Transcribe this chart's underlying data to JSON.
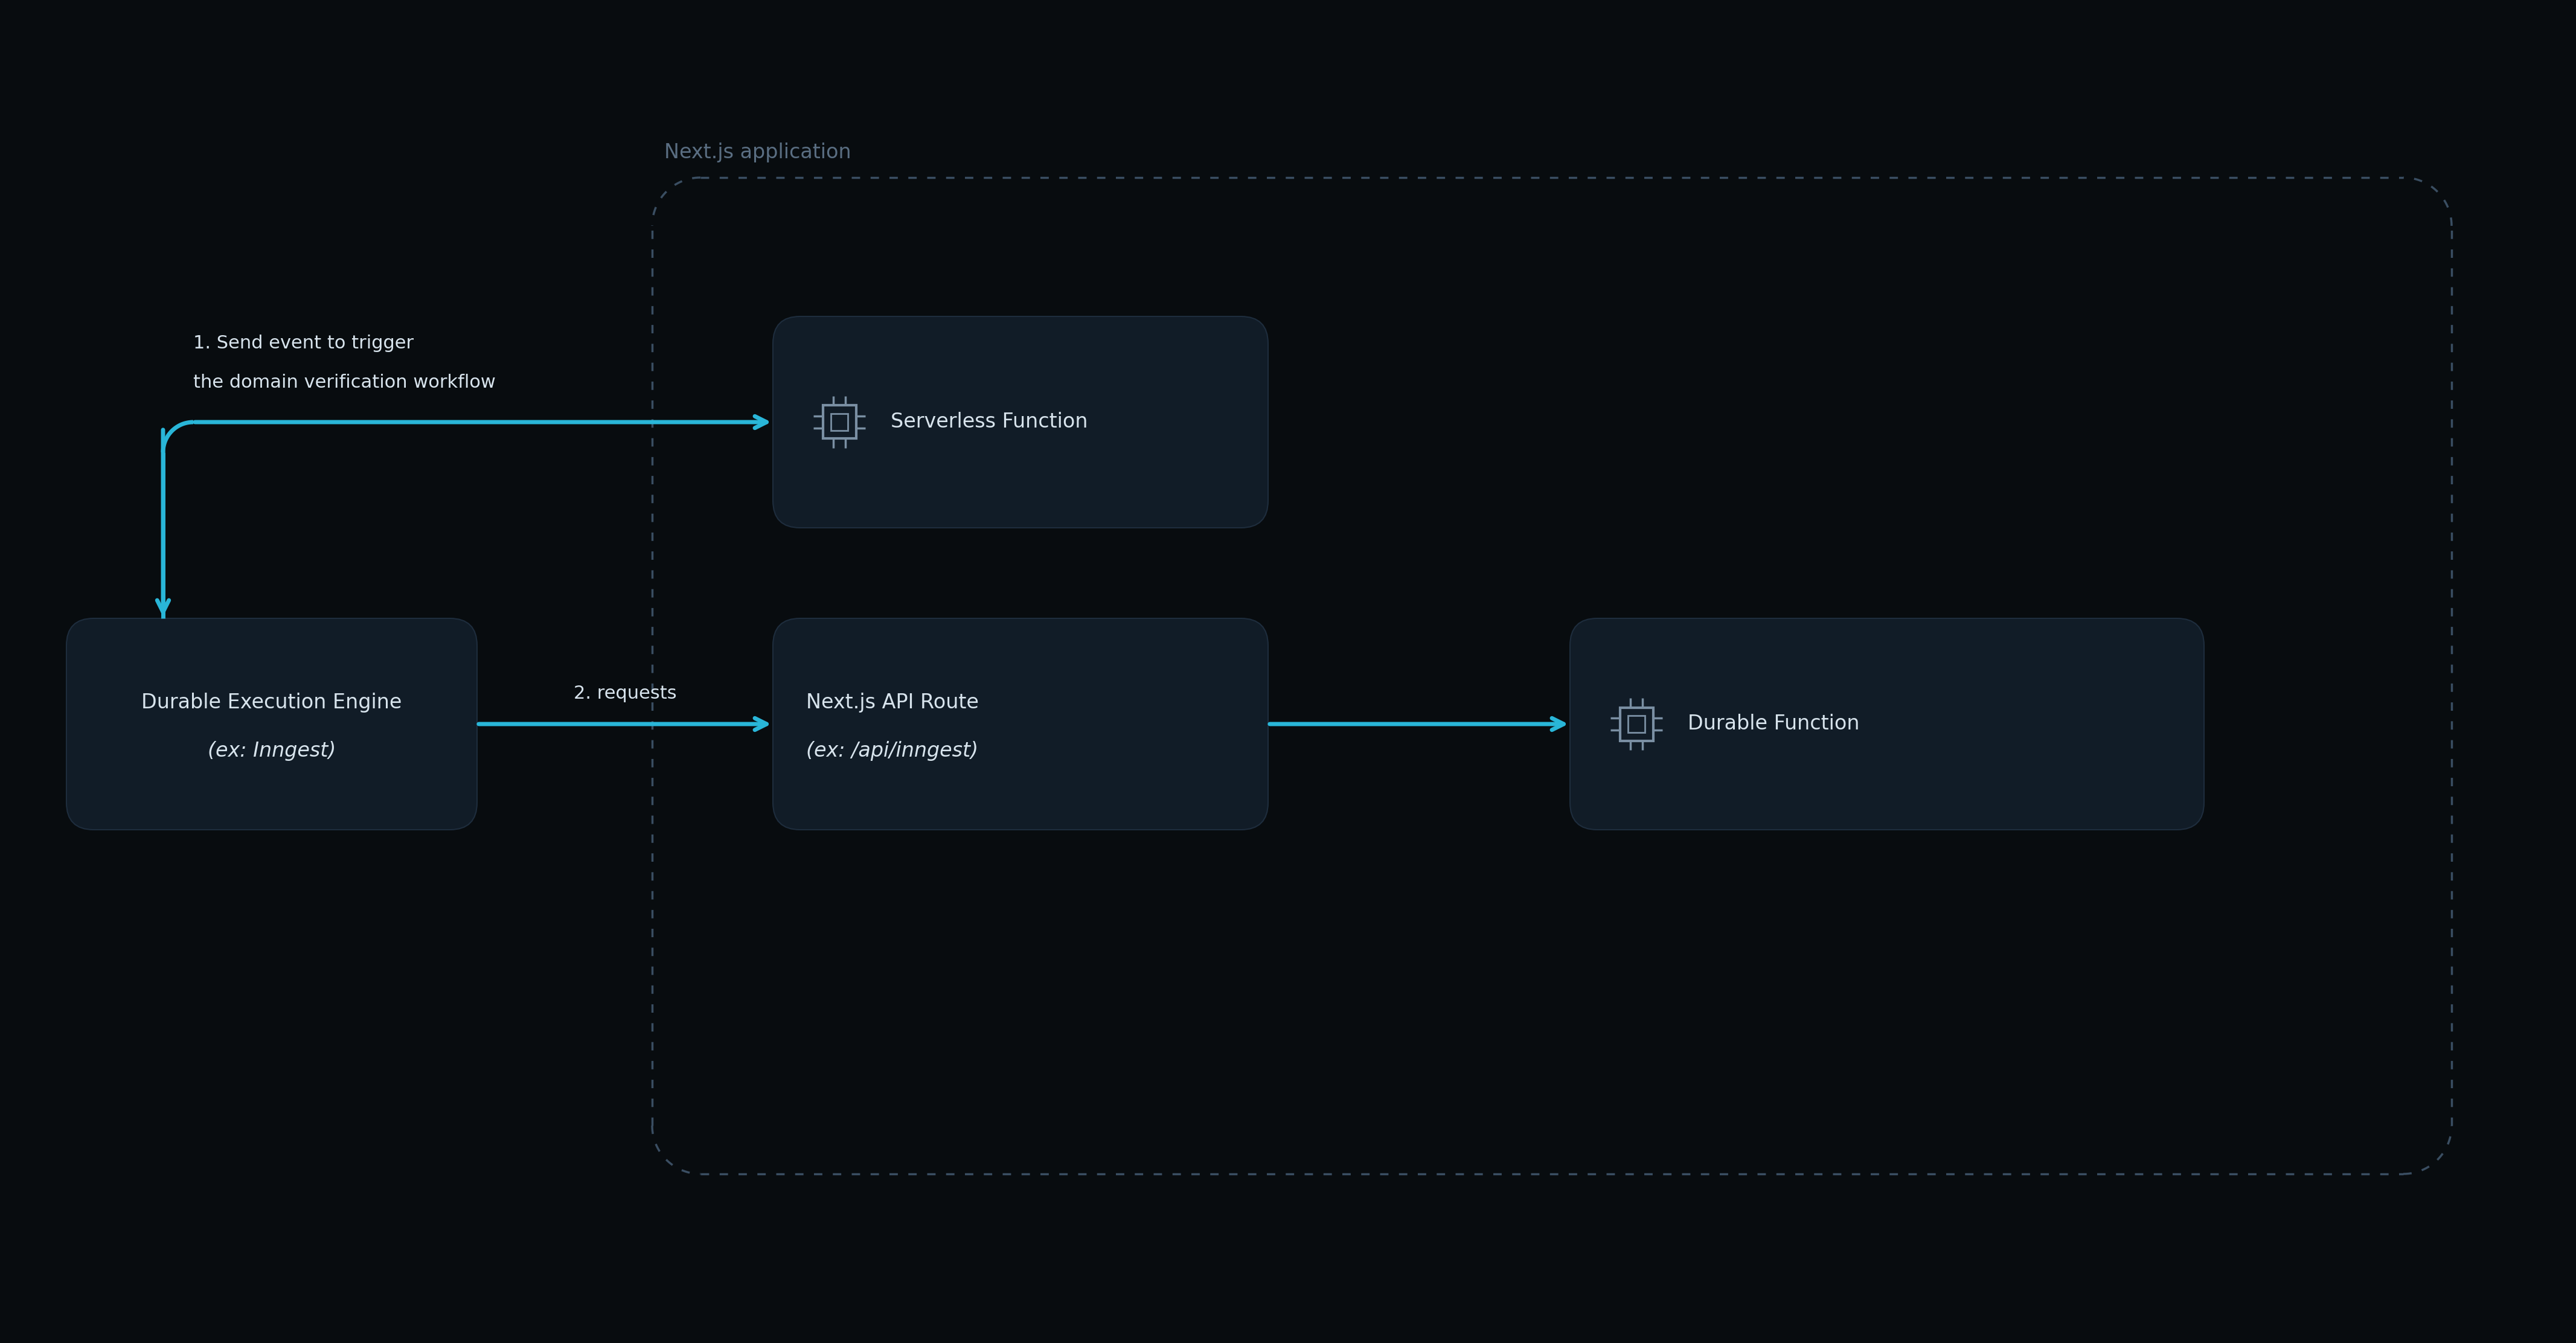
{
  "bg_color": "#080c0f",
  "box_color": "#111c27",
  "box_edge_color": "#1e2d3d",
  "arrow_color": "#29b6d8",
  "text_color": "#d8e4ed",
  "label_color": "#5a6e82",
  "dashed_border_color": "#3a4e62",
  "nextjs_label": "Next.js application",
  "box1_line1": "Durable Execution Engine",
  "box1_line2": "(ex: Inngest)",
  "box2_line1": "Serverless Function",
  "box3_line1": "Next.js API Route",
  "box3_line2": "(ex: /api/inngest)",
  "box4_line1": "Durable Function",
  "arrow1_label_line1": "1. Send event to trigger",
  "arrow1_label_line2": "the domain verification workflow",
  "arrow2_label": "2. requests",
  "figw": 42.66,
  "figh": 22.24
}
